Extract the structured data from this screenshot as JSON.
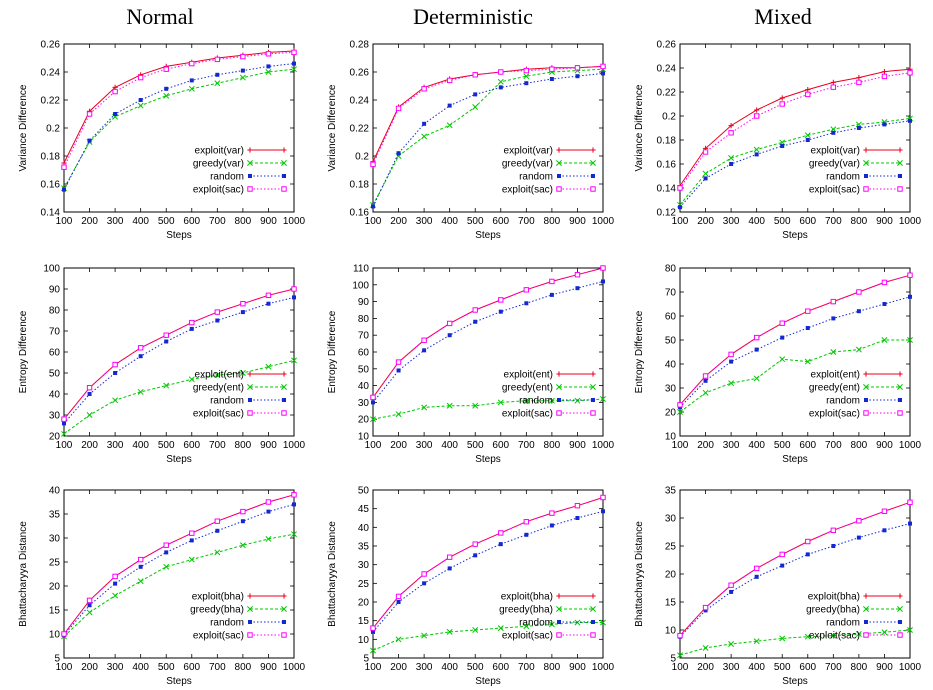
{
  "column_titles": [
    "Normal",
    "Deterministic",
    "Mixed"
  ],
  "colors": {
    "exploit": "#e8001c",
    "greedy": "#00c800",
    "random": "#1428d2",
    "sac": "#ff00ff"
  },
  "chart_data": [
    {
      "type": "line",
      "row": 0,
      "col": 0,
      "xlabel": "Steps",
      "ylabel": "Variance Difference",
      "x": [
        100,
        200,
        300,
        400,
        500,
        600,
        700,
        800,
        900,
        1000
      ],
      "ylim": [
        0.14,
        0.26
      ],
      "yticks": [
        0.14,
        0.16,
        0.18,
        0.2,
        0.22,
        0.24,
        0.26
      ],
      "ytick_labels": [
        "0.14",
        "0.16",
        "0.18",
        "0.2",
        "0.22",
        "0.24",
        "0.26"
      ],
      "series": [
        {
          "name": "exploit(var)",
          "values": [
            0.175,
            0.212,
            0.229,
            0.238,
            0.244,
            0.247,
            0.25,
            0.252,
            0.254,
            0.255
          ]
        },
        {
          "name": "greedy(var)",
          "values": [
            0.157,
            0.19,
            0.208,
            0.216,
            0.223,
            0.228,
            0.232,
            0.236,
            0.24,
            0.242
          ]
        },
        {
          "name": "random",
          "values": [
            0.156,
            0.191,
            0.21,
            0.22,
            0.228,
            0.234,
            0.238,
            0.241,
            0.244,
            0.246
          ]
        },
        {
          "name": "exploit(sac)",
          "values": [
            0.172,
            0.21,
            0.226,
            0.236,
            0.242,
            0.246,
            0.249,
            0.251,
            0.253,
            0.254
          ]
        }
      ]
    },
    {
      "type": "line",
      "row": 0,
      "col": 1,
      "xlabel": "Steps",
      "ylabel": "Variance Difference",
      "x": [
        100,
        200,
        300,
        400,
        500,
        600,
        700,
        800,
        900,
        1000
      ],
      "ylim": [
        0.16,
        0.28
      ],
      "yticks": [
        0.16,
        0.18,
        0.2,
        0.22,
        0.24,
        0.26,
        0.28
      ],
      "ytick_labels": [
        "0.16",
        "0.18",
        "0.2",
        "0.22",
        "0.24",
        "0.26",
        "0.28"
      ],
      "series": [
        {
          "name": "exploit(var)",
          "values": [
            0.196,
            0.235,
            0.249,
            0.255,
            0.258,
            0.26,
            0.262,
            0.263,
            0.263,
            0.264
          ]
        },
        {
          "name": "greedy(var)",
          "values": [
            0.165,
            0.2,
            0.214,
            0.222,
            0.235,
            0.253,
            0.257,
            0.26,
            0.261,
            0.262
          ]
        },
        {
          "name": "random",
          "values": [
            0.164,
            0.202,
            0.223,
            0.236,
            0.244,
            0.249,
            0.252,
            0.255,
            0.257,
            0.259
          ]
        },
        {
          "name": "exploit(sac)",
          "values": [
            0.194,
            0.234,
            0.248,
            0.254,
            0.258,
            0.26,
            0.261,
            0.262,
            0.263,
            0.264
          ]
        }
      ]
    },
    {
      "type": "line",
      "row": 0,
      "col": 2,
      "xlabel": "Steps",
      "ylabel": "Variance Difference",
      "x": [
        100,
        200,
        300,
        400,
        500,
        600,
        700,
        800,
        900,
        1000
      ],
      "ylim": [
        0.12,
        0.26
      ],
      "yticks": [
        0.12,
        0.14,
        0.16,
        0.18,
        0.2,
        0.22,
        0.24,
        0.26
      ],
      "ytick_labels": [
        "0.12",
        "0.14",
        "0.16",
        "0.18",
        "0.2",
        "0.22",
        "0.24",
        "0.26"
      ],
      "series": [
        {
          "name": "exploit(var)",
          "values": [
            0.142,
            0.173,
            0.192,
            0.205,
            0.215,
            0.222,
            0.228,
            0.232,
            0.237,
            0.239
          ]
        },
        {
          "name": "greedy(var)",
          "values": [
            0.126,
            0.152,
            0.165,
            0.172,
            0.178,
            0.184,
            0.189,
            0.193,
            0.195,
            0.198
          ]
        },
        {
          "name": "random",
          "values": [
            0.124,
            0.148,
            0.16,
            0.168,
            0.175,
            0.18,
            0.186,
            0.19,
            0.193,
            0.196
          ]
        },
        {
          "name": "exploit(sac)",
          "values": [
            0.14,
            0.17,
            0.186,
            0.2,
            0.21,
            0.218,
            0.224,
            0.228,
            0.233,
            0.236
          ]
        }
      ]
    },
    {
      "type": "line",
      "row": 1,
      "col": 0,
      "xlabel": "Steps",
      "ylabel": "Entropy Difference",
      "x": [
        100,
        200,
        300,
        400,
        500,
        600,
        700,
        800,
        900,
        1000
      ],
      "ylim": [
        20,
        100
      ],
      "yticks": [
        20,
        30,
        40,
        50,
        60,
        70,
        80,
        90,
        100
      ],
      "ytick_labels": [
        "20",
        "30",
        "40",
        "50",
        "60",
        "70",
        "80",
        "90",
        "100"
      ],
      "series": [
        {
          "name": "exploit(ent)",
          "values": [
            28,
            43,
            54,
            62,
            68,
            74,
            79,
            83,
            87,
            90
          ]
        },
        {
          "name": "greedy(ent)",
          "values": [
            21,
            30,
            37,
            41,
            44,
            47,
            49,
            50,
            53,
            56
          ]
        },
        {
          "name": "random",
          "values": [
            26,
            40,
            50,
            58,
            65,
            71,
            75,
            79,
            83,
            86
          ]
        },
        {
          "name": "exploit(sac)",
          "values": [
            28,
            43,
            54,
            62,
            68,
            74,
            79,
            83,
            87,
            90
          ]
        }
      ]
    },
    {
      "type": "line",
      "row": 1,
      "col": 1,
      "xlabel": "Steps",
      "ylabel": "Entropy Difference",
      "x": [
        100,
        200,
        300,
        400,
        500,
        600,
        700,
        800,
        900,
        1000
      ],
      "ylim": [
        10,
        110
      ],
      "yticks": [
        10,
        20,
        30,
        40,
        50,
        60,
        70,
        80,
        90,
        100,
        110
      ],
      "ytick_labels": [
        "10",
        "20",
        "30",
        "40",
        "50",
        "60",
        "70",
        "80",
        "90",
        "100",
        "110"
      ],
      "series": [
        {
          "name": "exploit(ent)",
          "values": [
            33,
            54,
            67,
            77,
            85,
            91,
            97,
            102,
            106,
            110
          ]
        },
        {
          "name": "greedy(ent)",
          "values": [
            20,
            23,
            27,
            28,
            28,
            30,
            31,
            31,
            31,
            32
          ]
        },
        {
          "name": "random",
          "values": [
            30,
            49,
            61,
            70,
            78,
            84,
            89,
            94,
            98,
            102
          ]
        },
        {
          "name": "exploit(sac)",
          "values": [
            33,
            54,
            67,
            77,
            85,
            91,
            97,
            102,
            106,
            110
          ]
        }
      ]
    },
    {
      "type": "line",
      "row": 1,
      "col": 2,
      "xlabel": "Steps",
      "ylabel": "Entropy Difference",
      "x": [
        100,
        200,
        300,
        400,
        500,
        600,
        700,
        800,
        900,
        1000
      ],
      "ylim": [
        10,
        80
      ],
      "yticks": [
        10,
        20,
        30,
        40,
        50,
        60,
        70,
        80
      ],
      "ytick_labels": [
        "10",
        "20",
        "30",
        "40",
        "50",
        "60",
        "70",
        "80"
      ],
      "series": [
        {
          "name": "exploit(ent)",
          "values": [
            23,
            35,
            44,
            51,
            57,
            62,
            66,
            70,
            74,
            77
          ]
        },
        {
          "name": "greedy(ent)",
          "values": [
            20,
            28,
            32,
            34,
            42,
            41,
            45,
            46,
            50,
            50
          ]
        },
        {
          "name": "random",
          "values": [
            22,
            33,
            41,
            46,
            51,
            55,
            59,
            62,
            65,
            68
          ]
        },
        {
          "name": "exploit(sac)",
          "values": [
            23,
            35,
            44,
            51,
            57,
            62,
            66,
            70,
            74,
            77
          ]
        }
      ]
    },
    {
      "type": "line",
      "row": 2,
      "col": 0,
      "xlabel": "Steps",
      "ylabel": "Bhattacharyya Distance",
      "x": [
        100,
        200,
        300,
        400,
        500,
        600,
        700,
        800,
        900,
        1000
      ],
      "ylim": [
        5,
        40
      ],
      "yticks": [
        5,
        10,
        15,
        20,
        25,
        30,
        35,
        40
      ],
      "ytick_labels": [
        "5",
        "10",
        "15",
        "20",
        "25",
        "30",
        "35",
        "40"
      ],
      "series": [
        {
          "name": "exploit(bha)",
          "values": [
            10,
            17,
            22,
            25.5,
            28.5,
            31,
            33.5,
            35.5,
            37.5,
            39
          ]
        },
        {
          "name": "greedy(bha)",
          "values": [
            9.5,
            14.5,
            18,
            21,
            24,
            25.5,
            27,
            28.5,
            29.8,
            30.8
          ]
        },
        {
          "name": "random",
          "values": [
            9.8,
            16,
            20.5,
            24,
            27,
            29.5,
            31.5,
            33.5,
            35.5,
            37
          ]
        },
        {
          "name": "exploit(sac)",
          "values": [
            10,
            17,
            22,
            25.5,
            28.5,
            31,
            33.5,
            35.5,
            37.5,
            39
          ]
        }
      ]
    },
    {
      "type": "line",
      "row": 2,
      "col": 1,
      "xlabel": "Steps",
      "ylabel": "Bhattacharyya Distance",
      "x": [
        100,
        200,
        300,
        400,
        500,
        600,
        700,
        800,
        900,
        1000
      ],
      "ylim": [
        5,
        50
      ],
      "yticks": [
        5,
        10,
        15,
        20,
        25,
        30,
        35,
        40,
        45,
        50
      ],
      "ytick_labels": [
        "5",
        "10",
        "15",
        "20",
        "25",
        "30",
        "35",
        "40",
        "45",
        "50"
      ],
      "series": [
        {
          "name": "exploit(bha)",
          "values": [
            13,
            21.5,
            27.5,
            32,
            35.5,
            38.5,
            41.5,
            43.8,
            45.8,
            48
          ]
        },
        {
          "name": "greedy(bha)",
          "values": [
            7,
            10,
            11,
            12,
            12.5,
            13,
            13.5,
            14,
            14.5,
            14.5
          ]
        },
        {
          "name": "random",
          "values": [
            12,
            20,
            25,
            29,
            32.5,
            35.5,
            38,
            40.5,
            42.5,
            44.3
          ]
        },
        {
          "name": "exploit(sac)",
          "values": [
            13,
            21.5,
            27.5,
            32,
            35.5,
            38.5,
            41.5,
            43.8,
            45.8,
            48
          ]
        }
      ]
    },
    {
      "type": "line",
      "row": 2,
      "col": 2,
      "xlabel": "Steps",
      "ylabel": "Bhattacharyya Distance",
      "x": [
        100,
        200,
        300,
        400,
        500,
        600,
        700,
        800,
        900,
        1000
      ],
      "ylim": [
        5,
        35
      ],
      "yticks": [
        5,
        10,
        15,
        20,
        25,
        30,
        35
      ],
      "ytick_labels": [
        "5",
        "10",
        "15",
        "20",
        "25",
        "30",
        "35"
      ],
      "series": [
        {
          "name": "exploit(bha)",
          "values": [
            9,
            14,
            18,
            21,
            23.5,
            25.8,
            27.8,
            29.5,
            31.2,
            32.8
          ]
        },
        {
          "name": "greedy(bha)",
          "values": [
            5.5,
            6.8,
            7.5,
            8,
            8.5,
            8.8,
            9,
            9.3,
            9.6,
            10
          ]
        },
        {
          "name": "random",
          "values": [
            8.8,
            13.5,
            16.8,
            19.5,
            21.5,
            23.5,
            25,
            26.5,
            27.8,
            29
          ]
        },
        {
          "name": "exploit(sac)",
          "values": [
            9,
            14,
            18,
            21,
            23.5,
            25.8,
            27.8,
            29.5,
            31.2,
            32.8
          ]
        }
      ]
    }
  ]
}
